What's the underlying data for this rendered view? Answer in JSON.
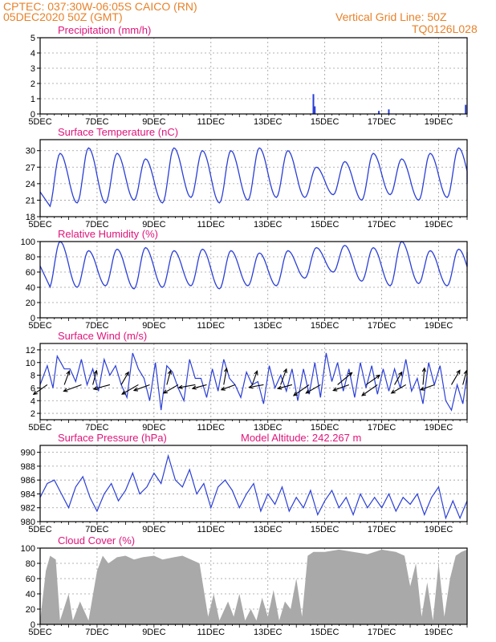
{
  "header": {
    "location": "CPTEC:   037:30W-06:05S   CAICO (RN)",
    "run": "05DEC2020 50Z (GMT)",
    "grid_note": "Vertical Grid Line: 50Z",
    "code": "TQ0126L028"
  },
  "colors": {
    "header": "#e8822a",
    "panel_title": "#e0157a",
    "line": "#2b3fd6",
    "cloud_fill": "#a9a9a9",
    "wind_arrow": "#000000",
    "grid": "#9a9a9a"
  },
  "chart_data": [
    {
      "id": "precipitation",
      "type": "bar",
      "title": "Precipitation (mm/h)",
      "ylim": [
        0,
        5
      ],
      "yticks": [
        0,
        1,
        2,
        3,
        4,
        5
      ],
      "x_day_range": [
        5,
        20
      ],
      "xtick_labels": [
        "5DEC",
        "7DEC",
        "9DEC",
        "11DEC",
        "13DEC",
        "15DEC",
        "17DEC",
        "19DEC"
      ],
      "x_day": [
        14.6,
        14.65,
        16.9,
        17.25,
        19.95
      ],
      "values": [
        1.3,
        0.5,
        0.2,
        0.3,
        0.6
      ]
    },
    {
      "id": "surface-temperature",
      "type": "line",
      "title": "Surface Temperature (nC)",
      "ylim": [
        18,
        32
      ],
      "yticks": [
        18,
        21,
        24,
        27,
        30
      ],
      "x_day_range": [
        5,
        20
      ],
      "xtick_labels": [
        "5DEC",
        "7DEC",
        "9DEC",
        "11DEC",
        "13DEC",
        "15DEC",
        "17DEC",
        "19DEC"
      ],
      "daily_max": [
        29.5,
        30.5,
        29.5,
        28.5,
        30.5,
        30.0,
        30.0,
        30.5,
        30.0,
        27.0,
        28.0,
        29.5,
        28.5,
        29.5,
        30.5,
        28.5
      ],
      "daily_min": [
        19.5,
        20.5,
        20.5,
        21.0,
        20.5,
        21.5,
        20.5,
        21.0,
        21.5,
        21.5,
        22.0,
        21.0,
        22.0,
        21.0,
        21.5,
        22.0
      ],
      "x_start": 5.0,
      "y_start": 22.5,
      "x_end": 20.0,
      "y_end": 24.0
    },
    {
      "id": "relative-humidity",
      "type": "line",
      "title": "Relative Humidity (%)",
      "ylim": [
        0,
        100
      ],
      "yticks": [
        0,
        20,
        40,
        60,
        80,
        100
      ],
      "x_day_range": [
        5,
        20
      ],
      "xtick_labels": [
        "5DEC",
        "7DEC",
        "9DEC",
        "11DEC",
        "13DEC",
        "15DEC",
        "17DEC",
        "19DEC"
      ],
      "daily_max": [
        100,
        88,
        90,
        92,
        88,
        90,
        88,
        85,
        88,
        92,
        95,
        92,
        100,
        88,
        90,
        90
      ],
      "daily_min": [
        38,
        40,
        42,
        38,
        40,
        42,
        38,
        42,
        42,
        52,
        60,
        48,
        42,
        45,
        42,
        44
      ],
      "x_start": 5.0,
      "y_start": 68,
      "x_end": 20.0,
      "y_end": 86
    },
    {
      "id": "surface-wind",
      "type": "line",
      "title": "Surface Wind (m/s)",
      "ylim": [
        1,
        13
      ],
      "yticks": [
        2,
        4,
        6,
        8,
        10,
        12
      ],
      "x_day_range": [
        5,
        20
      ],
      "xtick_labels": [
        "5DEC",
        "7DEC",
        "9DEC",
        "11DEC",
        "13DEC",
        "15DEC",
        "17DEC",
        "19DEC"
      ],
      "x_day": [
        5.0,
        5.25,
        5.45,
        5.6,
        5.85,
        6.05,
        6.25,
        6.45,
        6.65,
        6.85,
        7.05,
        7.25,
        7.45,
        7.65,
        7.85,
        8.05,
        8.25,
        8.45,
        8.65,
        8.85,
        9.05,
        9.25,
        9.45,
        9.65,
        9.85,
        10.05,
        10.25,
        10.45,
        10.65,
        10.85,
        11.05,
        11.25,
        11.45,
        11.65,
        11.85,
        12.05,
        12.25,
        12.45,
        12.65,
        12.85,
        13.05,
        13.25,
        13.45,
        13.65,
        13.85,
        14.05,
        14.25,
        14.45,
        14.65,
        14.85,
        15.05,
        15.25,
        15.45,
        15.65,
        15.85,
        16.05,
        16.25,
        16.45,
        16.65,
        16.85,
        17.05,
        17.25,
        17.45,
        17.65,
        17.85,
        18.05,
        18.25,
        18.45,
        18.65,
        18.85,
        19.05,
        19.25,
        19.45,
        19.65,
        19.85,
        20.0
      ],
      "values": [
        6.5,
        9.5,
        6.0,
        11.0,
        9.0,
        9.0,
        7.0,
        10.5,
        6.5,
        9.0,
        5.5,
        10.5,
        8.0,
        9.5,
        6.5,
        4.5,
        11.5,
        9.0,
        7.5,
        4.0,
        10.0,
        2.5,
        9.5,
        8.5,
        6.0,
        4.0,
        10.5,
        7.5,
        7.5,
        4.5,
        9.0,
        5.5,
        10.5,
        7.5,
        6.5,
        4.5,
        8.5,
        6.5,
        7.0,
        3.5,
        9.5,
        6.0,
        8.0,
        5.5,
        9.0,
        4.0,
        9.0,
        5.0,
        10.0,
        4.5,
        11.5,
        7.0,
        10.0,
        5.5,
        9.0,
        4.5,
        10.0,
        6.0,
        9.5,
        5.0,
        9.0,
        5.5,
        9.0,
        6.0,
        10.5,
        5.5,
        7.5,
        3.5,
        10.0,
        6.5,
        9.5,
        4.0,
        2.5,
        6.5,
        3.5,
        8.0
      ],
      "arrow_x_day": [
        5.25,
        5.85,
        6.45,
        6.85,
        7.45,
        7.85,
        8.45,
        8.85,
        9.45,
        9.85,
        10.45,
        10.85,
        11.45,
        11.85,
        12.45,
        12.85,
        13.45,
        13.85,
        14.45,
        14.85,
        15.45,
        15.85,
        16.45,
        16.85,
        17.45,
        17.85,
        18.45,
        18.85,
        19.45,
        19.85
      ],
      "arrow_dir_deg": [
        215,
        70,
        200,
        75,
        195,
        60,
        210,
        200,
        75,
        210,
        190,
        195,
        80,
        200,
        70,
        190,
        70,
        195,
        215,
        210,
        40,
        200,
        35,
        215,
        60,
        210,
        85,
        200,
        60,
        75
      ],
      "arrow_speed": [
        8,
        7,
        9,
        7,
        8,
        7,
        9,
        8,
        7,
        8,
        8,
        7,
        8,
        7,
        7,
        7,
        8,
        7,
        9,
        8,
        9,
        8,
        8,
        9,
        7,
        8,
        8,
        7,
        8,
        7
      ]
    },
    {
      "id": "surface-pressure",
      "type": "line",
      "title": "Surface Pressure (hPa)",
      "annotation": "Model Altitude: 242.267 m",
      "ylim": [
        980,
        991
      ],
      "yticks": [
        980,
        982,
        984,
        986,
        988,
        990
      ],
      "x_day_range": [
        5,
        20
      ],
      "xtick_labels": [
        "5DEC",
        "7DEC",
        "9DEC",
        "11DEC",
        "13DEC",
        "15DEC",
        "17DEC",
        "19DEC"
      ],
      "x_day": [
        5.0,
        5.25,
        5.5,
        5.75,
        6.0,
        6.25,
        6.5,
        6.75,
        7.0,
        7.25,
        7.5,
        7.75,
        8.0,
        8.25,
        8.5,
        8.75,
        9.0,
        9.25,
        9.5,
        9.75,
        10.0,
        10.25,
        10.5,
        10.75,
        11.0,
        11.25,
        11.5,
        11.75,
        12.0,
        12.25,
        12.5,
        12.75,
        13.0,
        13.25,
        13.5,
        13.75,
        14.0,
        14.25,
        14.5,
        14.75,
        15.0,
        15.25,
        15.5,
        15.75,
        16.0,
        16.25,
        16.5,
        16.75,
        17.0,
        17.25,
        17.5,
        17.75,
        18.0,
        18.25,
        18.5,
        18.75,
        19.0,
        19.25,
        19.5,
        19.75,
        20.0
      ],
      "values": [
        983.5,
        985.5,
        986.0,
        984.0,
        982.0,
        985.0,
        986.5,
        983.5,
        981.5,
        984.0,
        985.5,
        983.0,
        984.5,
        987.0,
        984.0,
        985.0,
        987.0,
        985.5,
        989.5,
        986.0,
        985.0,
        987.5,
        984.0,
        985.5,
        982.0,
        985.0,
        986.0,
        984.5,
        982.0,
        984.0,
        985.5,
        981.5,
        984.0,
        982.5,
        985.0,
        981.5,
        983.5,
        982.0,
        984.5,
        981.0,
        983.0,
        984.5,
        982.0,
        983.5,
        981.0,
        984.0,
        982.0,
        983.5,
        982.0,
        984.0,
        981.5,
        983.5,
        982.5,
        984.0,
        981.0,
        983.5,
        985.0,
        980.5,
        983.0,
        980.5,
        983.0
      ]
    },
    {
      "id": "cloud-cover",
      "type": "area",
      "title": "Cloud Cover (%)",
      "ylim": [
        0,
        100
      ],
      "yticks": [
        0,
        20,
        40,
        60,
        80,
        100
      ],
      "x_day_range": [
        5,
        20
      ],
      "xtick_labels": [
        "5DEC",
        "7DEC",
        "9DEC",
        "11DEC",
        "13DEC",
        "15DEC",
        "17DEC",
        "19DEC"
      ],
      "x_day": [
        5.0,
        5.2,
        5.35,
        5.55,
        5.7,
        6.0,
        6.15,
        6.4,
        6.7,
        7.0,
        7.2,
        7.4,
        7.7,
        8.0,
        8.3,
        8.6,
        9.0,
        9.3,
        9.7,
        10.0,
        10.3,
        10.6,
        10.9,
        11.1,
        11.3,
        11.6,
        11.8,
        12.0,
        12.2,
        12.4,
        12.6,
        12.8,
        13.0,
        13.2,
        13.4,
        13.6,
        13.8,
        14.0,
        14.2,
        14.4,
        14.6,
        15.0,
        15.5,
        16.0,
        16.5,
        17.0,
        17.5,
        17.8,
        18.0,
        18.2,
        18.4,
        18.6,
        18.8,
        19.0,
        19.2,
        19.4,
        19.6,
        19.8,
        20.0
      ],
      "values": [
        5,
        70,
        90,
        85,
        5,
        40,
        5,
        30,
        5,
        70,
        90,
        80,
        88,
        90,
        85,
        88,
        90,
        85,
        88,
        90,
        85,
        80,
        10,
        40,
        5,
        30,
        10,
        40,
        5,
        20,
        5,
        35,
        10,
        45,
        5,
        30,
        20,
        60,
        10,
        90,
        95,
        95,
        98,
        95,
        92,
        98,
        95,
        90,
        50,
        80,
        10,
        55,
        5,
        80,
        10,
        60,
        90,
        95,
        98
      ]
    }
  ]
}
